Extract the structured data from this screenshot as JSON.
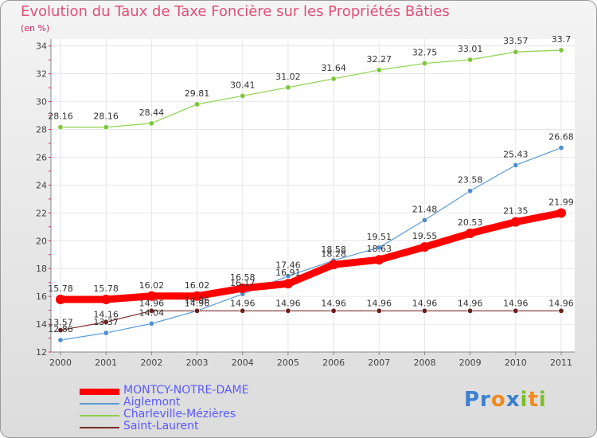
{
  "page": {
    "title": "Evolution du Taux de Taxe Foncière sur les Propriétés Bâties",
    "subtitle": "(en %)",
    "logo": "Proxiti"
  },
  "chart_data": {
    "type": "line",
    "title": "Evolution du Taux de Taxe Foncière sur les Propriétés Bâties",
    "ylabel": "(en %)",
    "x": [
      "2000",
      "2001",
      "2002",
      "2003",
      "2004",
      "2005",
      "2006",
      "2007",
      "2008",
      "2009",
      "2010",
      "2011"
    ],
    "yticks": [
      12,
      14,
      16,
      18,
      20,
      22,
      24,
      26,
      28,
      30,
      32,
      34
    ],
    "ylim": [
      12,
      34.5
    ],
    "grid": true,
    "legend_position": "bottom-left",
    "series": [
      {
        "name": "MONTCY-NOTRE-DAME",
        "color": "#ff0000",
        "values": [
          15.78,
          15.78,
          16.02,
          16.02,
          16.58,
          16.91,
          18.28,
          18.63,
          19.55,
          20.53,
          21.35,
          21.99
        ],
        "labels": [
          "15.78",
          "15.78",
          "16.02",
          "16.02",
          "16.58",
          "16.91",
          "18.28",
          "18.63",
          "19.55",
          "20.53",
          "21.35",
          "21.99"
        ]
      },
      {
        "name": "Aiglemont",
        "color": "#5b9bd5",
        "values": [
          12.86,
          13.37,
          14.04,
          14.96,
          16.17,
          17.46,
          18.58,
          19.51,
          21.48,
          23.58,
          25.43,
          26.68
        ],
        "labels": [
          "12.86",
          "13.37",
          "14.04",
          "14.96",
          "16.17",
          "17.46",
          "18.58",
          "19.51",
          "21.48",
          "23.58",
          "25.43",
          "26.68"
        ]
      },
      {
        "name": "Charleville-Mézières",
        "color": "#8ed14a",
        "values": [
          28.16,
          28.16,
          28.44,
          29.81,
          30.41,
          31.02,
          31.64,
          32.27,
          32.75,
          33.01,
          33.57,
          33.7
        ],
        "labels": [
          "28.16",
          "28.16",
          "28.44",
          "29.81",
          "30.41",
          "31.02",
          "31.64",
          "32.27",
          "32.75",
          "33.01",
          "33.57",
          "33.7"
        ]
      },
      {
        "name": "Saint-Laurent",
        "color": "#7a2b2b",
        "values": [
          13.57,
          14.16,
          14.96,
          14.96,
          14.96,
          14.96,
          14.96,
          14.96,
          14.96,
          14.96,
          14.96,
          14.96
        ],
        "labels": [
          "13.57",
          "14.16",
          "14.96",
          "14.96",
          "14.96",
          "14.96",
          "14.96",
          "14.96",
          "14.96",
          "14.96",
          "14.96",
          "14.96"
        ]
      }
    ]
  }
}
